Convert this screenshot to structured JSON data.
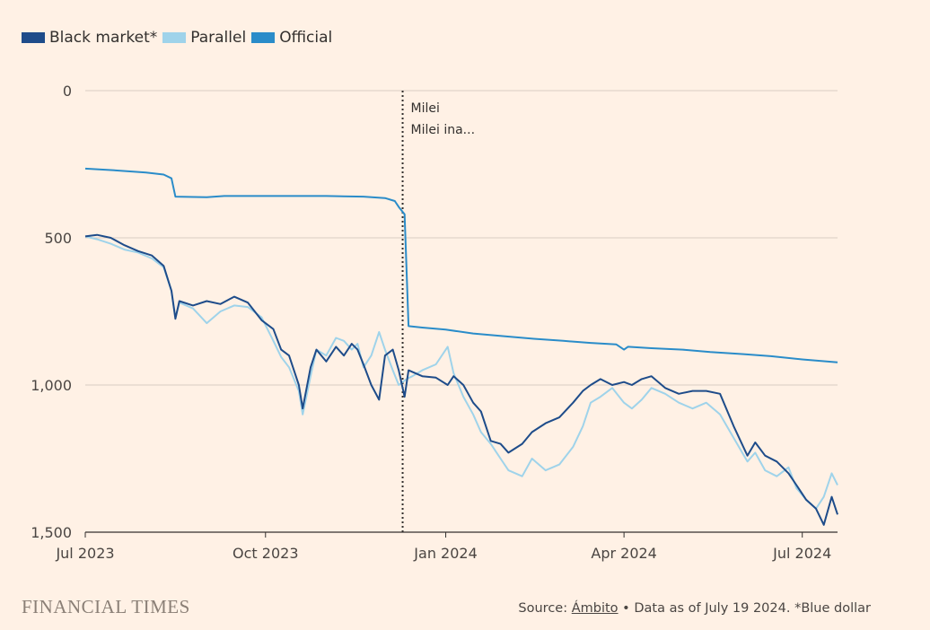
{
  "legend": [
    {
      "label": "Black market*",
      "color": "#1e4c8a"
    },
    {
      "label": "Parallel",
      "color": "#9fd3ea"
    },
    {
      "label": "Official",
      "color": "#2a8cc9"
    }
  ],
  "annotation": {
    "line1": "Milei",
    "line2": "Milei ina..."
  },
  "footer": {
    "brand": "FINANCIAL TIMES",
    "source_prefix": "Source: ",
    "source_name": "Ámbito",
    "source_suffix": " • Data as of July 19 2024. *Blue dollar"
  },
  "chart_data": {
    "type": "line",
    "title": "",
    "xlabel": "",
    "ylabel": "",
    "y_inverted": true,
    "ylim": [
      0,
      1500
    ],
    "y_ticks": [
      0,
      500,
      1000,
      1500
    ],
    "y_tick_labels": [
      "0",
      "500",
      "1,000",
      "1,500"
    ],
    "xlim": [
      "2023-07-01",
      "2024-07-19"
    ],
    "x_ticks": [
      "2023-07-01",
      "2023-10-01",
      "2024-01-01",
      "2024-04-01",
      "2024-07-01"
    ],
    "x_tick_labels": [
      "Jul 2023",
      "Oct 2023",
      "Jan 2024",
      "Apr 2024",
      "Jul 2024"
    ],
    "grid": true,
    "legend_position": "top-left",
    "event_marker": {
      "x": "2023-12-10",
      "label": "Milei"
    },
    "series": [
      {
        "name": "Official",
        "color": "#2a8cc9",
        "points": [
          [
            "2023-07-01",
            265
          ],
          [
            "2023-07-15",
            270
          ],
          [
            "2023-08-01",
            278
          ],
          [
            "2023-08-10",
            285
          ],
          [
            "2023-08-14",
            298
          ],
          [
            "2023-08-16",
            360
          ],
          [
            "2023-09-01",
            362
          ],
          [
            "2023-09-10",
            358
          ],
          [
            "2023-10-01",
            358
          ],
          [
            "2023-11-01",
            358
          ],
          [
            "2023-11-20",
            360
          ],
          [
            "2023-12-01",
            365
          ],
          [
            "2023-12-06",
            375
          ],
          [
            "2023-12-08",
            395
          ],
          [
            "2023-12-11",
            420
          ],
          [
            "2023-12-13",
            800
          ],
          [
            "2023-12-20",
            805
          ],
          [
            "2024-01-01",
            812
          ],
          [
            "2024-01-15",
            825
          ],
          [
            "2024-02-01",
            835
          ],
          [
            "2024-02-15",
            843
          ],
          [
            "2024-03-01",
            850
          ],
          [
            "2024-03-15",
            857
          ],
          [
            "2024-03-28",
            862
          ],
          [
            "2024-04-01",
            880
          ],
          [
            "2024-04-03",
            870
          ],
          [
            "2024-04-15",
            875
          ],
          [
            "2024-05-01",
            880
          ],
          [
            "2024-05-15",
            888
          ],
          [
            "2024-06-01",
            895
          ],
          [
            "2024-06-15",
            902
          ],
          [
            "2024-07-01",
            913
          ],
          [
            "2024-07-10",
            918
          ],
          [
            "2024-07-19",
            923
          ]
        ]
      },
      {
        "name": "Parallel",
        "color": "#9fd3ea",
        "points": [
          [
            "2023-07-01",
            495
          ],
          [
            "2023-07-07",
            505
          ],
          [
            "2023-07-14",
            520
          ],
          [
            "2023-07-21",
            540
          ],
          [
            "2023-07-28",
            550
          ],
          [
            "2023-08-04",
            570
          ],
          [
            "2023-08-10",
            600
          ],
          [
            "2023-08-14",
            680
          ],
          [
            "2023-08-16",
            770
          ],
          [
            "2023-08-18",
            720
          ],
          [
            "2023-08-25",
            740
          ],
          [
            "2023-09-01",
            790
          ],
          [
            "2023-09-08",
            750
          ],
          [
            "2023-09-15",
            730
          ],
          [
            "2023-09-22",
            735
          ],
          [
            "2023-09-29",
            770
          ],
          [
            "2023-10-05",
            850
          ],
          [
            "2023-10-09",
            905
          ],
          [
            "2023-10-13",
            940
          ],
          [
            "2023-10-18",
            1020
          ],
          [
            "2023-10-20",
            1100
          ],
          [
            "2023-10-24",
            970
          ],
          [
            "2023-10-27",
            880
          ],
          [
            "2023-11-01",
            900
          ],
          [
            "2023-11-06",
            840
          ],
          [
            "2023-11-10",
            850
          ],
          [
            "2023-11-14",
            880
          ],
          [
            "2023-11-17",
            860
          ],
          [
            "2023-11-20",
            940
          ],
          [
            "2023-11-24",
            900
          ],
          [
            "2023-11-28",
            820
          ],
          [
            "2023-12-01",
            880
          ],
          [
            "2023-12-05",
            950
          ],
          [
            "2023-12-08",
            1000
          ],
          [
            "2023-12-12",
            980
          ],
          [
            "2023-12-15",
            970
          ],
          [
            "2023-12-20",
            950
          ],
          [
            "2023-12-27",
            930
          ],
          [
            "2024-01-02",
            870
          ],
          [
            "2024-01-05",
            960
          ],
          [
            "2024-01-10",
            1040
          ],
          [
            "2024-01-15",
            1100
          ],
          [
            "2024-01-19",
            1160
          ],
          [
            "2024-01-24",
            1200
          ],
          [
            "2024-01-29",
            1250
          ],
          [
            "2024-02-02",
            1290
          ],
          [
            "2024-02-09",
            1310
          ],
          [
            "2024-02-14",
            1250
          ],
          [
            "2024-02-21",
            1290
          ],
          [
            "2024-02-28",
            1270
          ],
          [
            "2024-03-06",
            1210
          ],
          [
            "2024-03-11",
            1140
          ],
          [
            "2024-03-15",
            1060
          ],
          [
            "2024-03-20",
            1040
          ],
          [
            "2024-03-26",
            1010
          ],
          [
            "2024-04-01",
            1060
          ],
          [
            "2024-04-05",
            1080
          ],
          [
            "2024-04-10",
            1050
          ],
          [
            "2024-04-15",
            1010
          ],
          [
            "2024-04-22",
            1030
          ],
          [
            "2024-04-29",
            1060
          ],
          [
            "2024-05-06",
            1080
          ],
          [
            "2024-05-13",
            1060
          ],
          [
            "2024-05-20",
            1100
          ],
          [
            "2024-05-27",
            1180
          ],
          [
            "2024-06-03",
            1260
          ],
          [
            "2024-06-07",
            1230
          ],
          [
            "2024-06-12",
            1290
          ],
          [
            "2024-06-18",
            1310
          ],
          [
            "2024-06-24",
            1280
          ],
          [
            "2024-06-28",
            1350
          ],
          [
            "2024-07-03",
            1390
          ],
          [
            "2024-07-08",
            1420
          ],
          [
            "2024-07-12",
            1380
          ],
          [
            "2024-07-16",
            1300
          ],
          [
            "2024-07-19",
            1340
          ]
        ]
      },
      {
        "name": "Black market*",
        "color": "#1e4c8a",
        "points": [
          [
            "2023-07-01",
            495
          ],
          [
            "2023-07-07",
            490
          ],
          [
            "2023-07-14",
            500
          ],
          [
            "2023-07-21",
            525
          ],
          [
            "2023-07-28",
            545
          ],
          [
            "2023-08-04",
            560
          ],
          [
            "2023-08-10",
            595
          ],
          [
            "2023-08-14",
            680
          ],
          [
            "2023-08-16",
            775
          ],
          [
            "2023-08-18",
            715
          ],
          [
            "2023-08-25",
            730
          ],
          [
            "2023-09-01",
            715
          ],
          [
            "2023-09-08",
            725
          ],
          [
            "2023-09-15",
            700
          ],
          [
            "2023-09-22",
            720
          ],
          [
            "2023-09-29",
            780
          ],
          [
            "2023-10-05",
            810
          ],
          [
            "2023-10-09",
            880
          ],
          [
            "2023-10-13",
            900
          ],
          [
            "2023-10-18",
            1000
          ],
          [
            "2023-10-20",
            1080
          ],
          [
            "2023-10-24",
            940
          ],
          [
            "2023-10-27",
            880
          ],
          [
            "2023-11-01",
            920
          ],
          [
            "2023-11-06",
            870
          ],
          [
            "2023-11-10",
            900
          ],
          [
            "2023-11-14",
            860
          ],
          [
            "2023-11-17",
            880
          ],
          [
            "2023-11-20",
            930
          ],
          [
            "2023-11-24",
            1000
          ],
          [
            "2023-11-28",
            1050
          ],
          [
            "2023-12-01",
            900
          ],
          [
            "2023-12-05",
            880
          ],
          [
            "2023-12-08",
            950
          ],
          [
            "2023-12-11",
            1040
          ],
          [
            "2023-12-13",
            950
          ],
          [
            "2023-12-20",
            970
          ],
          [
            "2023-12-27",
            975
          ],
          [
            "2024-01-02",
            1000
          ],
          [
            "2024-01-05",
            970
          ],
          [
            "2024-01-10",
            1000
          ],
          [
            "2024-01-15",
            1060
          ],
          [
            "2024-01-19",
            1090
          ],
          [
            "2024-01-24",
            1190
          ],
          [
            "2024-01-29",
            1200
          ],
          [
            "2024-02-02",
            1230
          ],
          [
            "2024-02-09",
            1200
          ],
          [
            "2024-02-14",
            1160
          ],
          [
            "2024-02-21",
            1130
          ],
          [
            "2024-02-28",
            1110
          ],
          [
            "2024-03-06",
            1060
          ],
          [
            "2024-03-11",
            1020
          ],
          [
            "2024-03-15",
            1000
          ],
          [
            "2024-03-20",
            980
          ],
          [
            "2024-03-26",
            1000
          ],
          [
            "2024-04-01",
            990
          ],
          [
            "2024-04-05",
            1000
          ],
          [
            "2024-04-10",
            980
          ],
          [
            "2024-04-15",
            970
          ],
          [
            "2024-04-22",
            1010
          ],
          [
            "2024-04-29",
            1030
          ],
          [
            "2024-05-06",
            1020
          ],
          [
            "2024-05-13",
            1020
          ],
          [
            "2024-05-20",
            1030
          ],
          [
            "2024-05-27",
            1140
          ],
          [
            "2024-06-03",
            1240
          ],
          [
            "2024-06-07",
            1195
          ],
          [
            "2024-06-12",
            1240
          ],
          [
            "2024-06-18",
            1260
          ],
          [
            "2024-06-24",
            1300
          ],
          [
            "2024-06-28",
            1340
          ],
          [
            "2024-07-03",
            1390
          ],
          [
            "2024-07-08",
            1420
          ],
          [
            "2024-07-12",
            1475
          ],
          [
            "2024-07-16",
            1380
          ],
          [
            "2024-07-19",
            1440
          ]
        ]
      }
    ]
  }
}
